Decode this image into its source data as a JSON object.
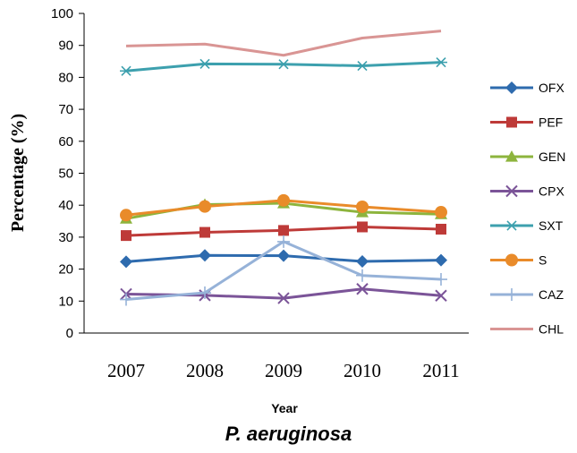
{
  "caption": "P. aeruginosa",
  "chart_data": {
    "type": "line",
    "title": "",
    "xlabel": "Year",
    "ylabel": "Percentage (%)",
    "ylim": [
      0,
      100
    ],
    "yticks": [
      0,
      10,
      20,
      30,
      40,
      50,
      60,
      70,
      80,
      90,
      100
    ],
    "x": [
      "2007",
      "2008",
      "2009",
      "2010",
      "2011"
    ],
    "grid": false,
    "legend_position": "right",
    "series": [
      {
        "name": "OFX",
        "color": "#2E6BAE",
        "marker": "diamond",
        "values": [
          22.3,
          24.3,
          24.2,
          22.4,
          22.8
        ]
      },
      {
        "name": "PEF",
        "color": "#BE3A38",
        "marker": "square",
        "values": [
          30.5,
          31.5,
          32.1,
          33.2,
          32.5
        ]
      },
      {
        "name": "GEN",
        "color": "#8DB43D",
        "marker": "triangle",
        "values": [
          35.8,
          40.2,
          40.6,
          37.8,
          37.2
        ]
      },
      {
        "name": "CPX",
        "color": "#7B5498",
        "marker": "x",
        "values": [
          12.2,
          11.8,
          10.9,
          13.8,
          11.7
        ]
      },
      {
        "name": "SXT",
        "color": "#3DA0AE",
        "marker": "asterisk",
        "values": [
          82.0,
          84.2,
          84.1,
          83.6,
          84.7
        ]
      },
      {
        "name": "S",
        "color": "#E98B2A",
        "marker": "circle",
        "values": [
          36.9,
          39.6,
          41.5,
          39.5,
          37.8
        ]
      },
      {
        "name": "CAZ",
        "color": "#96B2D8",
        "marker": "plus",
        "values": [
          10.5,
          12.6,
          28.6,
          18.0,
          16.8
        ]
      },
      {
        "name": "CHL",
        "color": "#D99594",
        "marker": "none",
        "values": [
          89.8,
          90.4,
          86.9,
          92.3,
          94.5
        ]
      }
    ]
  }
}
